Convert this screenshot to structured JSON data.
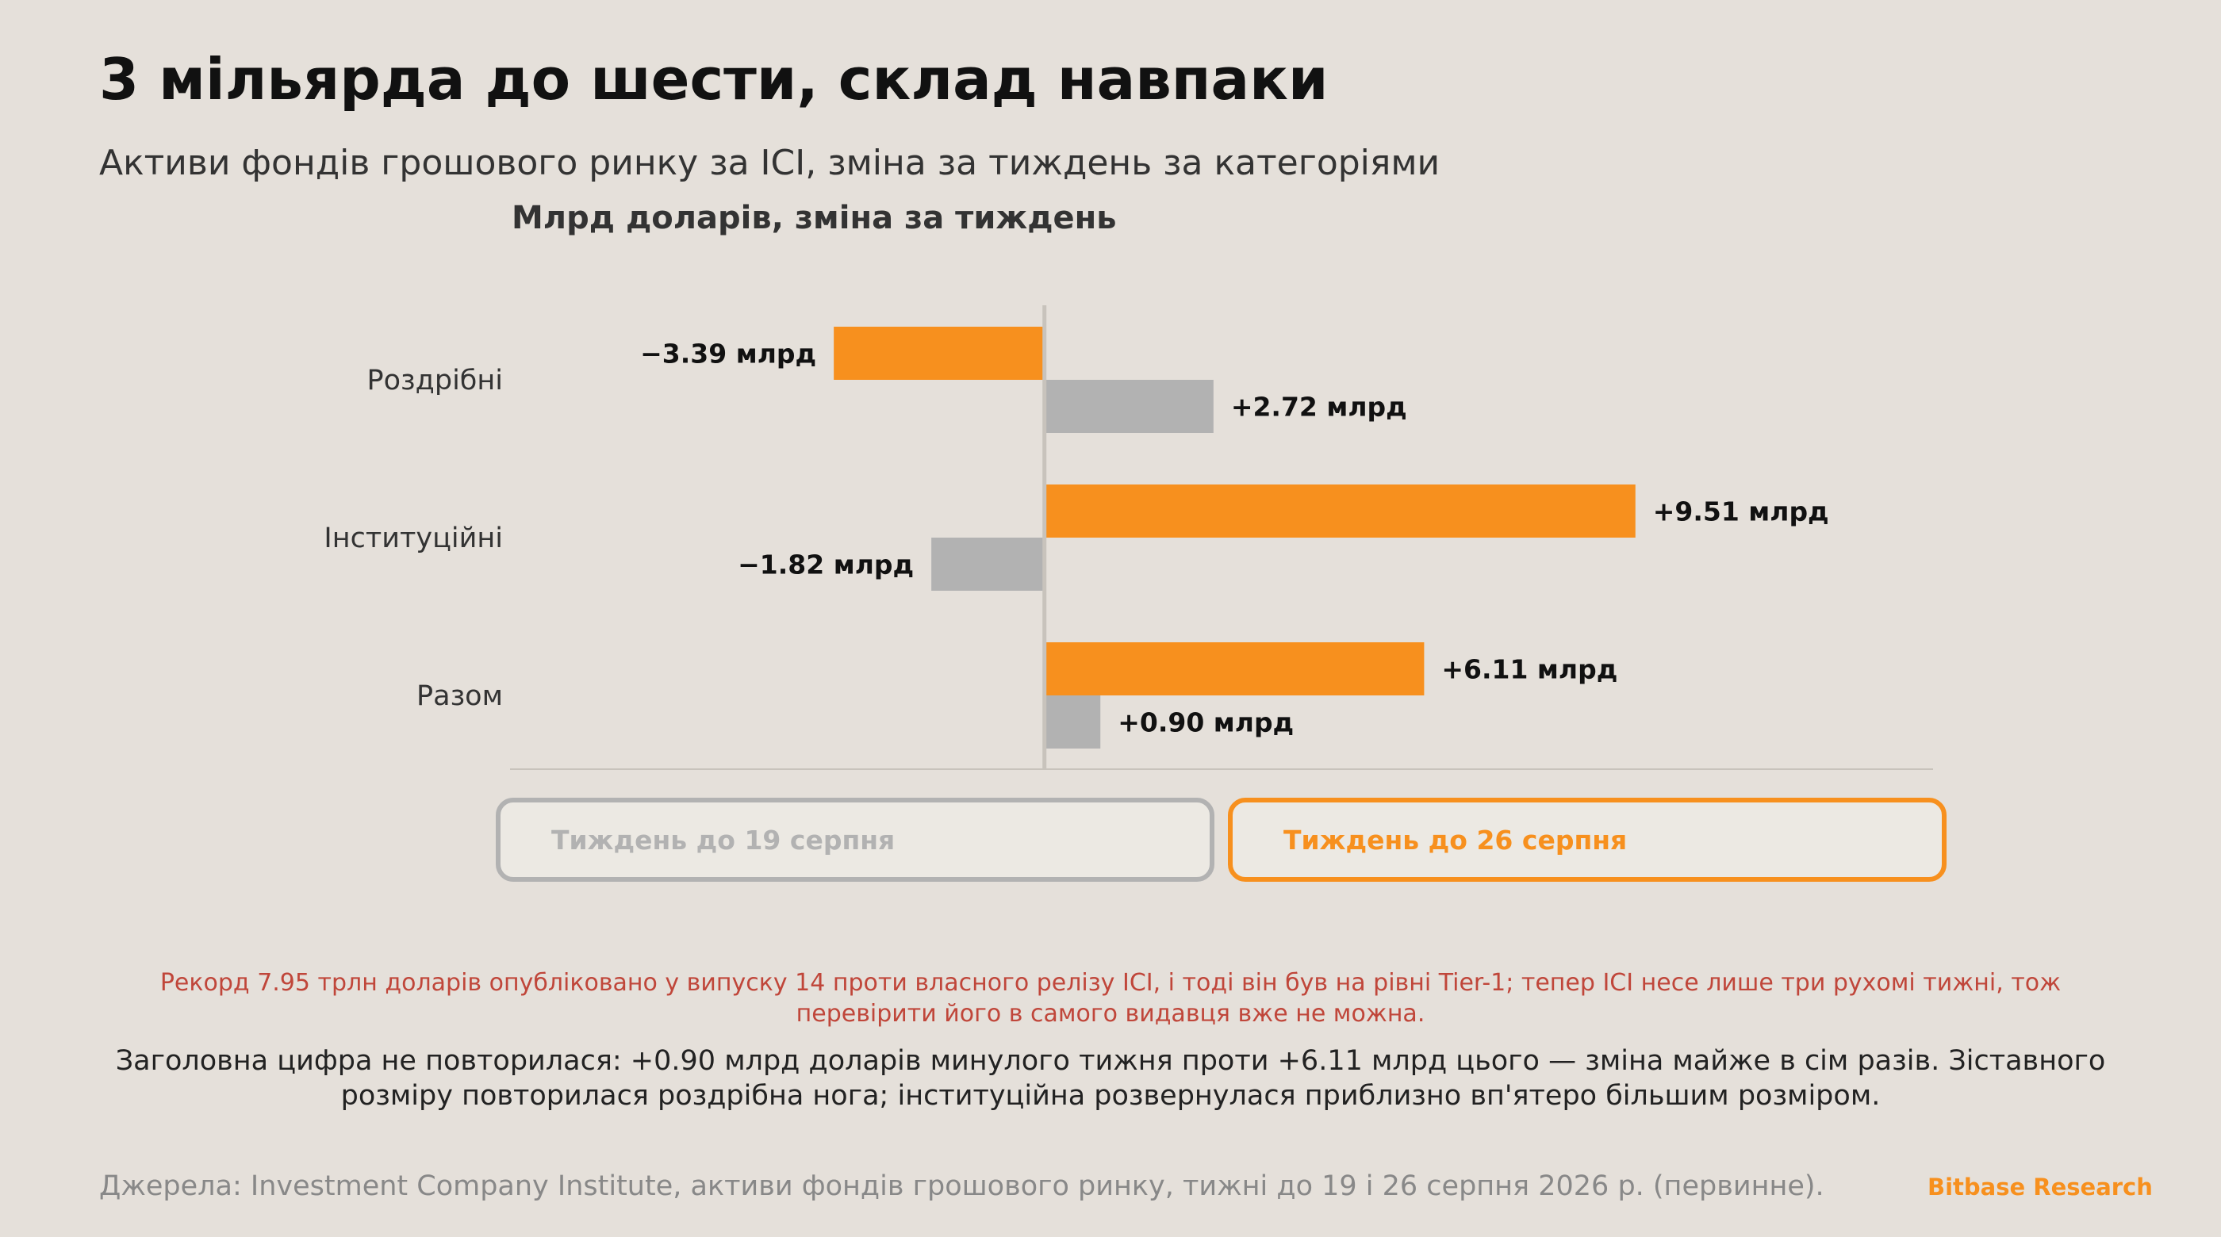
{
  "title": "3 мільярда до шести, склад навпаки",
  "subtitle": "Активи фондів грошового ринку за ICI, зміна за тиждень за категоріями",
  "note": "Рекорд 7.95 трлн доларів опубліковано у випуску 14 проти власного релізу ICI, і тоді він був на рівні Tier-1; тепер ICI несе лише три рухомі тижні, тож перевірити його в самого видавця вже не можна.",
  "body_text": "Заголовна цифра не повторилася: +0.90 млрд доларів минулого тижня проти +6.11 млрд цього — зміна майже в сім разів. Зіставного розміру повторилася роздрібна нога; інституційна розвернулася приблизно вп'ятеро більшим розміром.",
  "source": "Джерела: Investment Company Institute, активи фондів грошового ринку, тижні до 19 і 26 серпня 2026 р. (первинне).",
  "brand": "Bitbase Research",
  "chart_data": {
    "type": "bar",
    "orientation": "horizontal",
    "unit_label": "Млрд доларів, зміна за тиждень",
    "categories": [
      "Роздрібні",
      "Інституційні",
      "Разом"
    ],
    "series": [
      {
        "name": "Тиждень до 26 серпня",
        "color": "#f7901e",
        "values": [
          -3.39,
          9.51,
          6.11
        ],
        "labels": [
          "−3.39 млрд",
          "+9.51 млрд",
          "+6.11 млрд"
        ]
      },
      {
        "name": "Тиждень до 19 серпня",
        "color": "#b2b2b2",
        "values": [
          2.72,
          -1.82,
          0.9
        ],
        "labels": [
          "+2.72 млрд",
          "−1.82 млрд",
          "+0.90 млрд"
        ]
      }
    ],
    "xlim": [
      -8.6,
      14.3
    ],
    "grid": false,
    "legend_placement": "bottom"
  }
}
